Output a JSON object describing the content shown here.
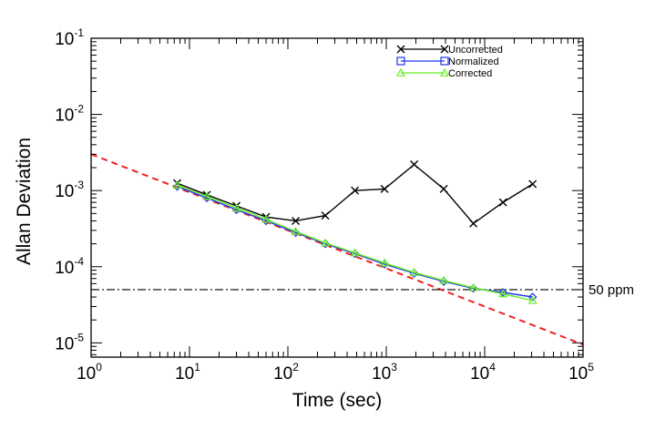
{
  "chart_data": {
    "type": "line",
    "title": "",
    "xlabel": "Time (sec)",
    "ylabel": "Allan Deviation",
    "xscale": "log",
    "yscale": "log",
    "xlim": [
      1,
      100000
    ],
    "ylim": [
      6.5e-06,
      0.1
    ],
    "xticks": [
      {
        "base": "10",
        "exp": "0",
        "value": 1
      },
      {
        "base": "10",
        "exp": "1",
        "value": 10
      },
      {
        "base": "10",
        "exp": "2",
        "value": 100
      },
      {
        "base": "10",
        "exp": "3",
        "value": 1000
      },
      {
        "base": "10",
        "exp": "4",
        "value": 10000
      },
      {
        "base": "10",
        "exp": "5",
        "value": 100000
      }
    ],
    "yticks": [
      {
        "base": "10",
        "exp": "-5",
        "value": 1e-05
      },
      {
        "base": "10",
        "exp": "-4",
        "value": 0.0001
      },
      {
        "base": "10",
        "exp": "-3",
        "value": 0.001
      },
      {
        "base": "10",
        "exp": "-2",
        "value": 0.01
      },
      {
        "base": "10",
        "exp": "-1",
        "value": 0.1
      }
    ],
    "legend_position": "top-right",
    "series": [
      {
        "name": "Uncorrected",
        "color": "#000000",
        "marker": "x",
        "x": [
          7.5,
          15,
          30,
          60,
          120,
          240,
          480,
          960,
          1920,
          3840,
          7680,
          15360,
          30720
        ],
        "y": [
          0.00125,
          0.00088,
          0.00063,
          0.00045,
          0.0004,
          0.00047,
          0.001,
          0.00105,
          0.0022,
          0.00105,
          0.00037,
          0.0007,
          0.00122
        ]
      },
      {
        "name": "Normalized",
        "color": "#2233ee",
        "marker": "square",
        "point_marker": "diamond",
        "x": [
          7.5,
          15,
          30,
          60,
          120,
          240,
          480,
          960,
          1920,
          3840,
          7680,
          15360,
          30720
        ],
        "y": [
          0.00113,
          0.0008,
          0.00056,
          0.0004,
          0.00028,
          0.0002,
          0.000148,
          0.000108,
          8.2e-05,
          6.4e-05,
          5.2e-05,
          4.6e-05,
          4e-05
        ]
      },
      {
        "name": "Corrected",
        "color": "#66ee22",
        "marker": "triangle",
        "x": [
          7.5,
          15,
          30,
          60,
          120,
          240,
          480,
          960,
          1920,
          3840,
          7680,
          15360,
          30720
        ],
        "y": [
          0.00118,
          0.00084,
          0.00059,
          0.00042,
          0.00029,
          0.000205,
          0.000152,
          0.000112,
          8.4e-05,
          6.6e-05,
          5.3e-05,
          4.4e-05,
          3.6e-05
        ]
      }
    ],
    "reference_lines": [
      {
        "name": "fit",
        "style": "dashed",
        "color": "#ee2222",
        "x": [
          1,
          100000
        ],
        "y": [
          0.003,
          9.5e-06
        ]
      },
      {
        "name": "threshold",
        "style": "dash-dot",
        "color": "#000000",
        "value": 5e-05,
        "label": "50 ppm"
      }
    ]
  }
}
